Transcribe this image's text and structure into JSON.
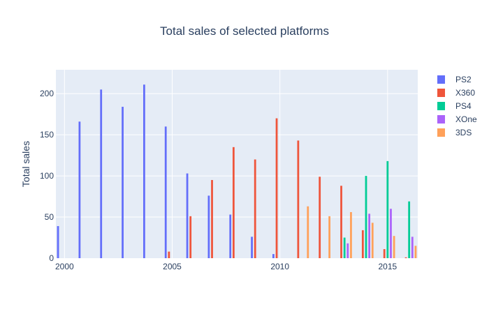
{
  "chart_data": {
    "type": "bar",
    "title": "Total sales of selected platforms",
    "xlabel": "",
    "ylabel": "Total sales",
    "x": [
      2000,
      2001,
      2002,
      2003,
      2004,
      2005,
      2006,
      2007,
      2008,
      2009,
      2010,
      2011,
      2012,
      2013,
      2014,
      2015,
      2016
    ],
    "xlim": [
      1999.6,
      2016.4
    ],
    "ylim": [
      0,
      229
    ],
    "x_ticks": [
      2000,
      2005,
      2010,
      2015
    ],
    "y_ticks": [
      0,
      50,
      100,
      150,
      200
    ],
    "grid": true,
    "legend_position": "right",
    "series": [
      {
        "name": "PS2",
        "color": "#636efa",
        "values": [
          39,
          166,
          205,
          184,
          211,
          160,
          103,
          76,
          53,
          26,
          5,
          0,
          0,
          0,
          0,
          0,
          0
        ]
      },
      {
        "name": "X360",
        "color": "#ef553b",
        "values": [
          0,
          0,
          0,
          0,
          0,
          8,
          51,
          95,
          135,
          120,
          170,
          143,
          99,
          88,
          34,
          11,
          1
        ]
      },
      {
        "name": "PS4",
        "color": "#00cc96",
        "values": [
          0,
          0,
          0,
          0,
          0,
          0,
          0,
          0,
          0,
          0,
          0,
          0,
          0,
          25,
          100,
          118,
          69
        ]
      },
      {
        "name": "XOne",
        "color": "#ab63fa",
        "values": [
          0,
          0,
          0,
          0,
          0,
          0,
          0,
          0,
          0,
          0,
          0,
          0,
          0,
          18,
          54,
          60,
          26
        ]
      },
      {
        "name": "3DS",
        "color": "#ffa15a",
        "values": [
          0,
          0,
          0,
          0,
          0,
          0,
          0,
          0,
          0,
          0,
          0,
          63,
          51,
          56,
          43,
          27,
          15
        ]
      }
    ]
  }
}
